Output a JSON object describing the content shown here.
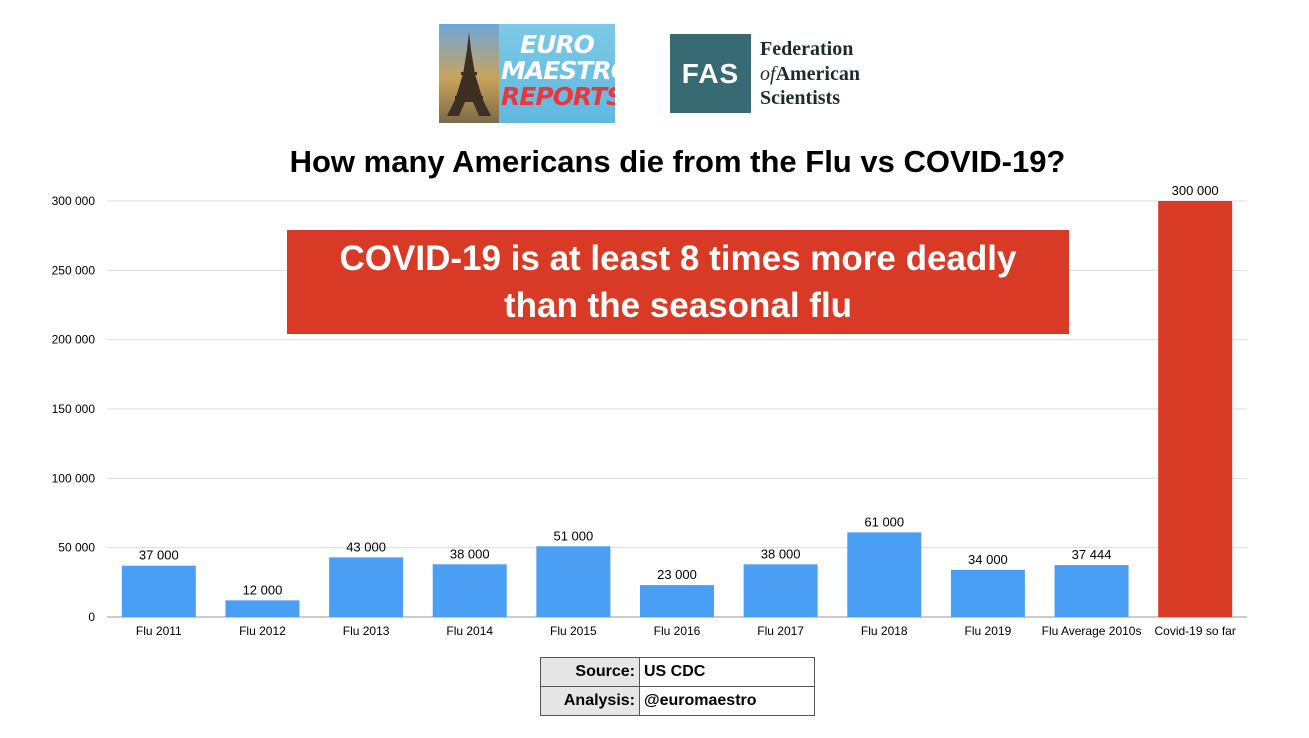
{
  "logos": {
    "euro_maestro": {
      "line1": "EURO",
      "line2": "MAESTRO",
      "line3": "REPORTS"
    },
    "fas": {
      "badge": "FAS",
      "name_line1": "Federation",
      "name_of": "of",
      "name_line2": "American",
      "name_line3": "Scientists"
    }
  },
  "callout": {
    "line1": "COVID-19 is at least 8 times more deadly",
    "line2": "than the seasonal flu"
  },
  "source": [
    {
      "label": "Source:",
      "value": "US CDC"
    },
    {
      "label": "Analysis:",
      "value": "@euromaestro"
    }
  ],
  "colors": {
    "flu_bar": "#4a9ff5",
    "covid_bar": "#d93a26",
    "callout_bg": "#d93a26",
    "fas_bg": "#376a73"
  },
  "chart_data": {
    "type": "bar",
    "title": "How many Americans die from the Flu vs COVID-19?",
    "xlabel": "",
    "ylabel": "",
    "ylim": [
      0,
      300000
    ],
    "yticks": [
      0,
      50000,
      100000,
      150000,
      200000,
      250000,
      300000
    ],
    "ytick_labels": [
      "0",
      "50 000",
      "100 000",
      "150 000",
      "200 000",
      "250 000",
      "300 000"
    ],
    "grid": true,
    "categories": [
      "Flu 2011",
      "Flu 2012",
      "Flu 2013",
      "Flu 2014",
      "Flu 2015",
      "Flu 2016",
      "Flu 2017",
      "Flu 2018",
      "Flu 2019",
      "Flu Average 2010s",
      "Covid-19 so far"
    ],
    "values": [
      37000,
      12000,
      43000,
      38000,
      51000,
      23000,
      38000,
      61000,
      34000,
      37444,
      300000
    ],
    "value_labels": [
      "37 000",
      "12 000",
      "43 000",
      "38 000",
      "51 000",
      "23 000",
      "38 000",
      "61 000",
      "34 000",
      "37 444",
      "300 000"
    ],
    "bar_colors": [
      "#4a9ff5",
      "#4a9ff5",
      "#4a9ff5",
      "#4a9ff5",
      "#4a9ff5",
      "#4a9ff5",
      "#4a9ff5",
      "#4a9ff5",
      "#4a9ff5",
      "#4a9ff5",
      "#d93a26"
    ]
  }
}
